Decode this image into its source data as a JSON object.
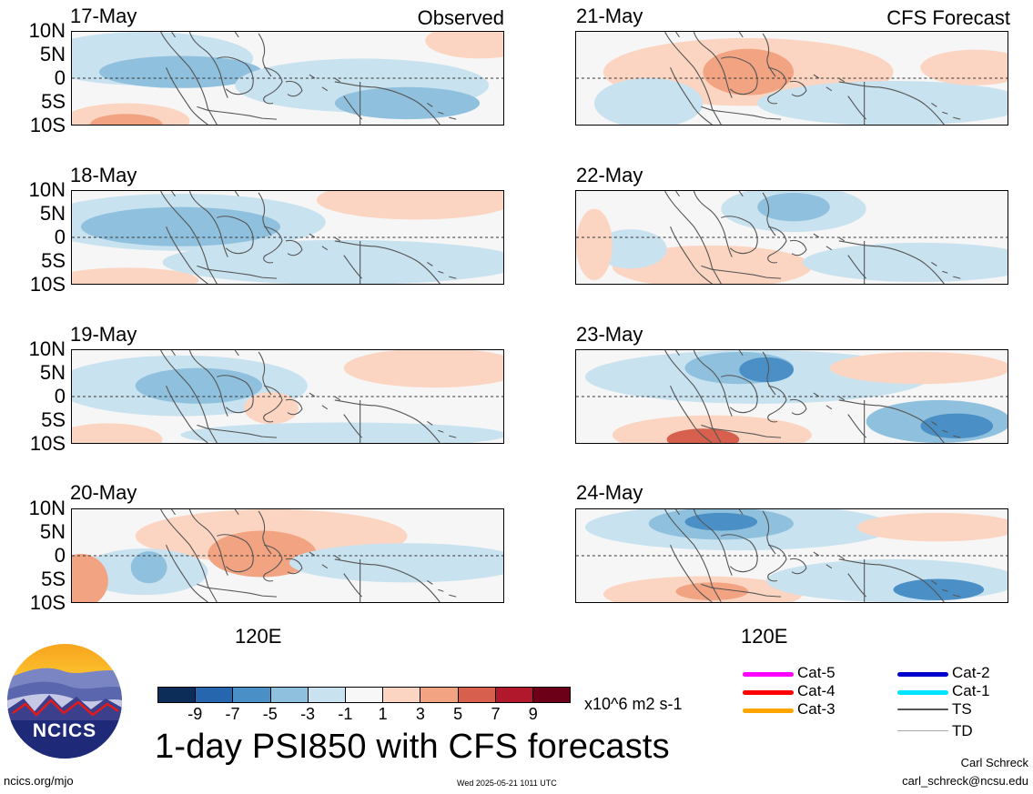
{
  "left_column": {
    "corner_label": "Observed",
    "panels": [
      {
        "date": "17-May"
      },
      {
        "date": "18-May"
      },
      {
        "date": "19-May"
      },
      {
        "date": "20-May"
      }
    ]
  },
  "right_column": {
    "corner_label": "CFS Forecast",
    "panels": [
      {
        "date": "21-May"
      },
      {
        "date": "22-May"
      },
      {
        "date": "23-May"
      },
      {
        "date": "24-May"
      }
    ]
  },
  "lat_labels": [
    "10N",
    "5N",
    "0",
    "5S",
    "10S"
  ],
  "lon_label": "120E",
  "colorbar": {
    "colors": [
      "#0b2d57",
      "#2566ae",
      "#4a90c6",
      "#8fc1de",
      "#c9e2f0",
      "#f7f7f7",
      "#fbd5c1",
      "#f2a381",
      "#d6604d",
      "#b2182b",
      "#6b0018"
    ],
    "ticks": [
      "-9",
      "-7",
      "-5",
      "-3",
      "-1",
      "1",
      "3",
      "5",
      "7",
      "9"
    ],
    "units": "x10^6 m2 s-1"
  },
  "title": "1-day PSI850 with CFS forecasts",
  "legend": {
    "items": [
      {
        "label": "Cat-5",
        "color": "#ff00ff"
      },
      {
        "label": "Cat-4",
        "color": "#ff0000"
      },
      {
        "label": "Cat-3",
        "color": "#ffa500"
      },
      {
        "label": "Cat-2",
        "color": "#0000cc"
      },
      {
        "label": "Cat-1",
        "color": "#00e5ff"
      },
      {
        "label": "TS",
        "color": "#555555"
      },
      {
        "label": "TD",
        "color": "#aaaaaa"
      }
    ]
  },
  "logo_text": "NCICS",
  "footer": {
    "url": "ncics.org/mjo",
    "timestamp": "Wed 2025-05-21 1011 UTC",
    "author": "Carl Schreck",
    "email": "carl_schreck@ncsu.edu"
  }
}
